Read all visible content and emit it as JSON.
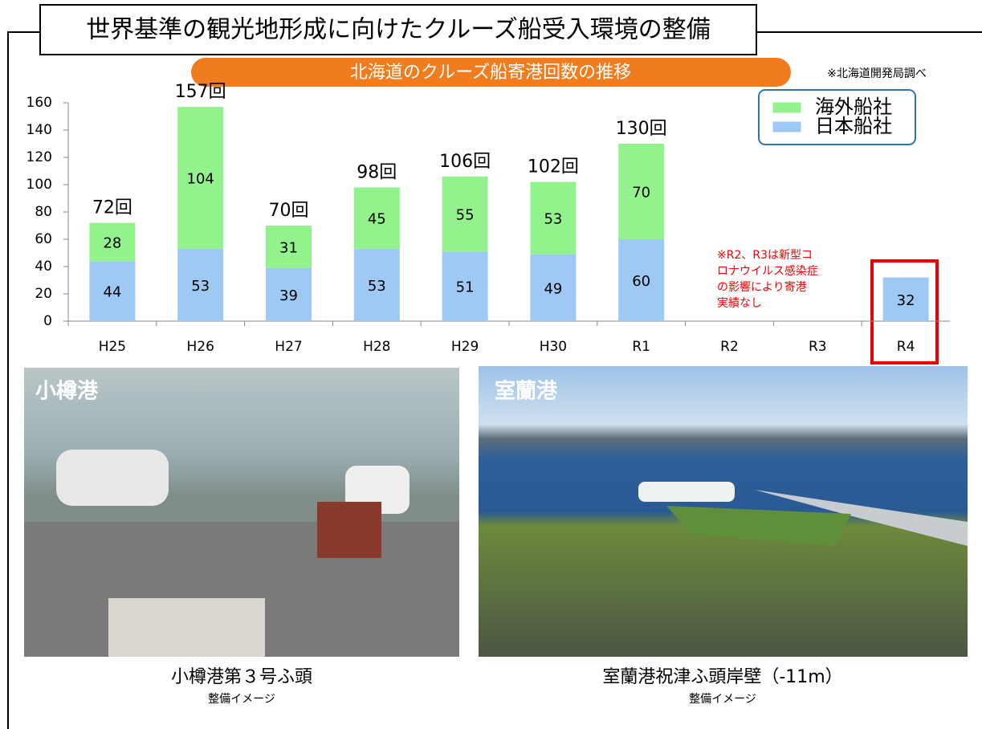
{
  "header": {
    "title": "世界基準の観光地形成に向けたクルーズ船受入環境の整備"
  },
  "chart_data": {
    "type": "stacked-bar",
    "title": "北海道のクルーズ船寄港回数の推移",
    "source_note": "※北海道開発局調べ",
    "categories": [
      "H25",
      "H26",
      "H27",
      "H28",
      "H29",
      "H30",
      "R1",
      "R2",
      "R3",
      "R4"
    ],
    "series": [
      {
        "name": "日本船社",
        "color": "#9dc9f4",
        "values": [
          44,
          53,
          39,
          53,
          51,
          49,
          60,
          null,
          null,
          32
        ]
      },
      {
        "name": "海外船社",
        "color": "#92f28c",
        "values": [
          28,
          104,
          31,
          45,
          55,
          53,
          70,
          null,
          null,
          null
        ]
      }
    ],
    "totals": [
      72,
      157,
      70,
      98,
      106,
      102,
      130,
      null,
      null,
      null
    ],
    "total_labels": [
      "72回",
      "157回",
      "70回",
      "98回",
      "106回",
      "102回",
      "130回",
      null,
      null,
      null
    ],
    "annotation": [
      "※R2、R3は新型コ",
      "ロナウイルス感染症",
      "の影響により寄港",
      "実績なし"
    ],
    "ylim": [
      0,
      160
    ],
    "yticks": [
      0,
      20,
      40,
      60,
      80,
      100,
      120,
      140,
      160
    ],
    "legend": "top-right"
  },
  "photos": [
    {
      "label": "小樽港",
      "caption": "小樽港第３号ふ頭",
      "subcaption": "整備イメージ"
    },
    {
      "label": "室蘭港",
      "caption": "室蘭港祝津ふ頭岸壁（-11m）",
      "subcaption": "整備イメージ"
    }
  ]
}
